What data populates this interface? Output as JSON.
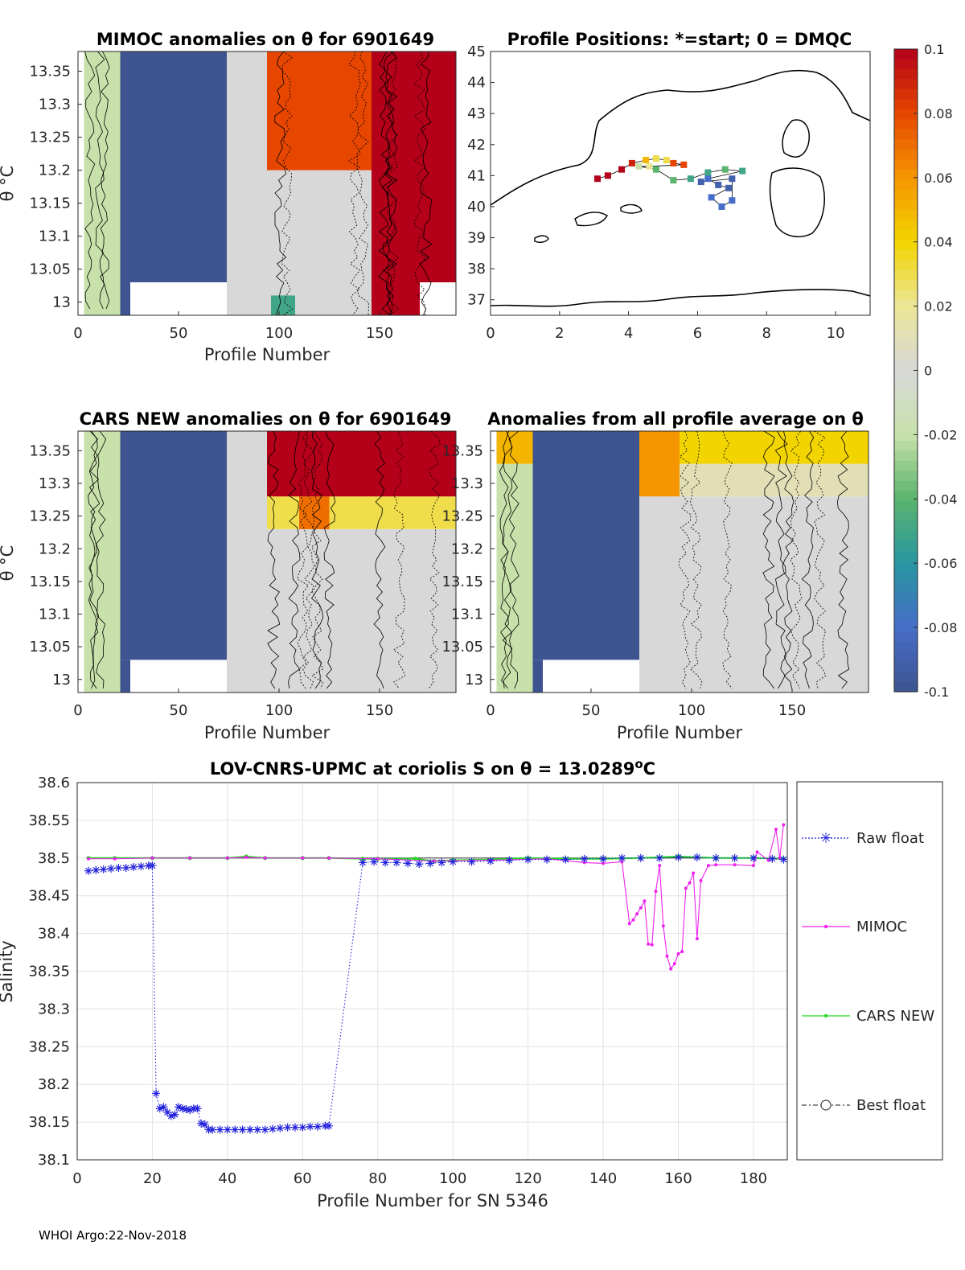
{
  "footer": "WHOI Argo:22-Nov-2018",
  "colors": {
    "blue_block": "#3e5490",
    "gray": "#d8d8d8",
    "pale_green": "#d6e8b9",
    "red": "#b40019",
    "orange": "#f27a00",
    "yellow": "#f2d400",
    "raw": "#2222dd",
    "mimoc": "#ee22ee",
    "cars": "#22dd22",
    "best": "#444444"
  },
  "chart_data": [
    {
      "id": "mimoc_anom",
      "type": "heatmap",
      "title": "MIMOC anomalies on θ  for 6901649",
      "xlabel": "Profile Number",
      "ylabel": "θ °C",
      "xlim": [
        0,
        188
      ],
      "ylim": [
        12.98,
        13.38
      ],
      "xticks": [
        "0",
        "50",
        "100",
        "150"
      ],
      "yticks": [
        "13",
        "13.05",
        "13.1",
        "13.15",
        "13.2",
        "13.25",
        "13.3",
        "13.35"
      ],
      "regions": [
        {
          "x": [
            3,
            21
          ],
          "y": [
            12.98,
            13.38
          ],
          "value": -0.02
        },
        {
          "x": [
            21,
            74
          ],
          "y": [
            13.03,
            13.38
          ],
          "value": -0.1
        },
        {
          "x": [
            21,
            26
          ],
          "y": [
            12.98,
            13.03
          ],
          "value": -0.1
        },
        {
          "x": [
            74,
            94
          ],
          "y": [
            12.98,
            13.38
          ],
          "value": 0.0
        },
        {
          "x": [
            94,
            146
          ],
          "y": [
            12.98,
            13.2
          ],
          "value": 0.0
        },
        {
          "x": [
            94,
            146
          ],
          "y": [
            13.2,
            13.38
          ],
          "value": 0.08
        },
        {
          "x": [
            146,
            170
          ],
          "y": [
            12.98,
            13.38
          ],
          "value": 0.1
        },
        {
          "x": [
            170,
            188
          ],
          "y": [
            13.03,
            13.38
          ],
          "value": 0.1
        },
        {
          "x": [
            96,
            108
          ],
          "y": [
            12.98,
            13.01
          ],
          "value": -0.05
        }
      ]
    },
    {
      "id": "positions",
      "type": "scatter",
      "title": "Profile Positions: *=start; 0 = DMQC",
      "xlim": [
        0,
        11
      ],
      "ylim": [
        36.5,
        45
      ],
      "xticks": [
        "0",
        "2",
        "4",
        "6",
        "8",
        "10"
      ],
      "yticks": [
        "37",
        "38",
        "39",
        "40",
        "41",
        "42",
        "43",
        "44",
        "45"
      ],
      "points": [
        {
          "lon": 3.1,
          "lat": 40.9,
          "value": 0.1
        },
        {
          "lon": 3.4,
          "lat": 41.0,
          "value": 0.1
        },
        {
          "lon": 3.8,
          "lat": 41.2,
          "value": 0.1
        },
        {
          "lon": 4.1,
          "lat": 41.4,
          "value": 0.09
        },
        {
          "lon": 4.5,
          "lat": 41.5,
          "value": 0.05
        },
        {
          "lon": 4.8,
          "lat": 41.55,
          "value": 0.03
        },
        {
          "lon": 5.1,
          "lat": 41.5,
          "value": 0.03
        },
        {
          "lon": 5.3,
          "lat": 41.4,
          "value": 0.08
        },
        {
          "lon": 5.6,
          "lat": 41.35,
          "value": 0.08
        },
        {
          "lon": 4.6,
          "lat": 41.3,
          "value": 0.02
        },
        {
          "lon": 4.3,
          "lat": 41.3,
          "value": -0.02
        },
        {
          "lon": 4.8,
          "lat": 41.2,
          "value": -0.04
        },
        {
          "lon": 5.3,
          "lat": 40.85,
          "value": -0.04
        },
        {
          "lon": 5.8,
          "lat": 40.9,
          "value": -0.05
        },
        {
          "lon": 6.3,
          "lat": 41.1,
          "value": -0.05
        },
        {
          "lon": 6.8,
          "lat": 41.2,
          "value": -0.04
        },
        {
          "lon": 7.3,
          "lat": 41.15,
          "value": -0.05
        },
        {
          "lon": 6.3,
          "lat": 40.9,
          "value": -0.08
        },
        {
          "lon": 6.6,
          "lat": 40.7,
          "value": -0.09
        },
        {
          "lon": 6.9,
          "lat": 40.6,
          "value": -0.09
        },
        {
          "lon": 6.4,
          "lat": 40.3,
          "value": -0.08
        },
        {
          "lon": 6.7,
          "lat": 40.0,
          "value": -0.08
        },
        {
          "lon": 7.0,
          "lat": 40.2,
          "value": -0.08
        },
        {
          "lon": 7.0,
          "lat": 40.9,
          "value": -0.09
        },
        {
          "lon": 6.1,
          "lat": 40.8,
          "value": -0.09
        }
      ]
    },
    {
      "id": "cars_anom",
      "type": "heatmap",
      "title": "CARS NEW anomalies on θ for 6901649",
      "xlabel": "Profile Number",
      "ylabel": "θ °C",
      "xlim": [
        0,
        188
      ],
      "ylim": [
        12.98,
        13.38
      ],
      "xticks": [
        "0",
        "50",
        "100",
        "150"
      ],
      "yticks": [
        "13",
        "13.05",
        "13.1",
        "13.15",
        "13.2",
        "13.25",
        "13.3",
        "13.35"
      ],
      "regions": [
        {
          "x": [
            3,
            21
          ],
          "y": [
            12.98,
            13.38
          ],
          "value": -0.02
        },
        {
          "x": [
            21,
            74
          ],
          "y": [
            13.03,
            13.38
          ],
          "value": -0.1
        },
        {
          "x": [
            21,
            26
          ],
          "y": [
            12.98,
            13.03
          ],
          "value": -0.1
        },
        {
          "x": [
            74,
            94
          ],
          "y": [
            12.98,
            13.38
          ],
          "value": 0.0
        },
        {
          "x": [
            94,
            188
          ],
          "y": [
            12.98,
            13.23
          ],
          "value": 0.0
        },
        {
          "x": [
            94,
            188
          ],
          "y": [
            13.23,
            13.28
          ],
          "value": 0.03
        },
        {
          "x": [
            110,
            125
          ],
          "y": [
            13.23,
            13.28
          ],
          "value": 0.07
        },
        {
          "x": [
            94,
            188
          ],
          "y": [
            13.28,
            13.38
          ],
          "value": 0.1
        }
      ]
    },
    {
      "id": "all_avg_anom",
      "type": "heatmap",
      "title": "Anomalies from all profile average on θ",
      "xlabel": "Profile Number",
      "xlim": [
        0,
        188
      ],
      "ylim": [
        12.98,
        13.38
      ],
      "xticks": [
        "0",
        "50",
        "100",
        "150"
      ],
      "yticks": [
        "13",
        "13.05",
        "13.1",
        "13.15",
        "13.2",
        "13.25",
        "13.3",
        "13.35"
      ],
      "regions": [
        {
          "x": [
            3,
            21
          ],
          "y": [
            12.98,
            13.33
          ],
          "value": -0.02
        },
        {
          "x": [
            3,
            21
          ],
          "y": [
            13.33,
            13.38
          ],
          "value": 0.05
        },
        {
          "x": [
            21,
            74
          ],
          "y": [
            13.03,
            13.38
          ],
          "value": -0.1
        },
        {
          "x": [
            21,
            26
          ],
          "y": [
            12.98,
            13.03
          ],
          "value": -0.1
        },
        {
          "x": [
            74,
            188
          ],
          "y": [
            12.98,
            13.28
          ],
          "value": 0.0
        },
        {
          "x": [
            74,
            94
          ],
          "y": [
            13.28,
            13.38
          ],
          "value": 0.06
        },
        {
          "x": [
            94,
            188
          ],
          "y": [
            13.28,
            13.33
          ],
          "value": 0.01
        },
        {
          "x": [
            94,
            188
          ],
          "y": [
            13.33,
            13.38
          ],
          "value": 0.04
        }
      ]
    },
    {
      "id": "colorbar",
      "type": "colorbar",
      "range": [
        -0.1,
        0.1
      ],
      "ticks": [
        "0.1",
        "0.08",
        "0.06",
        "0.04",
        "0.02",
        "0",
        "-0.02",
        "-0.04",
        "-0.06",
        "-0.08",
        "-0.1"
      ]
    },
    {
      "id": "salinity",
      "type": "line",
      "title": "LOV-CNRS-UPMC at coriolis S on θ = 13.0289°C",
      "title_main": "LOV-CNRS-UPMC at coriolis S on θ = 13.0289",
      "title_unit_sup": "o",
      "title_unit": "C",
      "xlabel": "Profile Number for SN 5346",
      "ylabel": "Salinity",
      "xlim": [
        0,
        189
      ],
      "ylim": [
        38.1,
        38.6
      ],
      "xticks": [
        "0",
        "20",
        "40",
        "60",
        "80",
        "100",
        "120",
        "140",
        "160",
        "180"
      ],
      "yticks": [
        "38.1",
        "38.15",
        "38.2",
        "38.25",
        "38.3",
        "38.35",
        "38.4",
        "38.45",
        "38.5",
        "38.55",
        "38.6"
      ],
      "legend": [
        "Raw float",
        "MIMOC",
        "CARS NEW",
        "Best float"
      ],
      "series": [
        {
          "name": "Raw float",
          "x": [
            3,
            5,
            7,
            9,
            11,
            13,
            15,
            17,
            19,
            20,
            21,
            22,
            23,
            24,
            25,
            26,
            27,
            28,
            29,
            30,
            31,
            32,
            33,
            34,
            35,
            36,
            38,
            40,
            42,
            44,
            46,
            48,
            50,
            52,
            54,
            56,
            58,
            60,
            62,
            64,
            66,
            67,
            76,
            79,
            82,
            85,
            88,
            91,
            94,
            97,
            100,
            105,
            110,
            115,
            120,
            125,
            130,
            135,
            140,
            145,
            150,
            155,
            160,
            165,
            170,
            175,
            180,
            185,
            188
          ],
          "values": [
            38.483,
            38.484,
            38.485,
            38.486,
            38.487,
            38.487,
            38.488,
            38.489,
            38.49,
            38.49,
            38.188,
            38.168,
            38.17,
            38.163,
            38.158,
            38.16,
            38.17,
            38.168,
            38.167,
            38.166,
            38.168,
            38.168,
            38.148,
            38.147,
            38.14,
            38.14,
            38.14,
            38.14,
            38.14,
            38.14,
            38.14,
            38.14,
            38.14,
            38.141,
            38.142,
            38.143,
            38.143,
            38.143,
            38.144,
            38.144,
            38.145,
            38.145,
            38.494,
            38.495,
            38.494,
            38.494,
            38.493,
            38.492,
            38.493,
            38.494,
            38.495,
            38.495,
            38.496,
            38.497,
            38.498,
            38.498,
            38.498,
            38.499,
            38.499,
            38.5,
            38.5,
            38.5,
            38.501,
            38.501,
            38.5,
            38.5,
            38.5,
            38.499,
            38.498
          ]
        },
        {
          "name": "MIMOC",
          "x": [
            3,
            10,
            20,
            30,
            40,
            45,
            50,
            60,
            67,
            80,
            95,
            110,
            125,
            135,
            140,
            145,
            147,
            148,
            149,
            150,
            151,
            152,
            153,
            154,
            155,
            156,
            157,
            158,
            159,
            160,
            161,
            162,
            163,
            164,
            165,
            166,
            168,
            170,
            175,
            180,
            181,
            184,
            186,
            187,
            188
          ],
          "values": [
            38.499,
            38.499,
            38.5,
            38.5,
            38.5,
            38.501,
            38.5,
            38.5,
            38.5,
            38.499,
            38.496,
            38.497,
            38.499,
            38.494,
            38.493,
            38.495,
            38.413,
            38.418,
            38.426,
            38.434,
            38.443,
            38.386,
            38.385,
            38.456,
            38.49,
            38.41,
            38.37,
            38.353,
            38.36,
            38.373,
            38.376,
            38.46,
            38.467,
            38.48,
            38.393,
            38.47,
            38.49,
            38.491,
            38.491,
            38.49,
            38.508,
            38.497,
            38.538,
            38.5,
            38.544
          ]
        },
        {
          "name": "CARS NEW",
          "x": [
            3,
            10,
            20,
            30,
            40,
            45,
            50,
            60,
            67,
            76,
            80,
            90,
            95,
            100,
            110,
            120,
            130,
            140,
            150,
            160,
            170,
            180,
            188
          ],
          "values": [
            38.5,
            38.5,
            38.5,
            38.5,
            38.5,
            38.502,
            38.5,
            38.5,
            38.5,
            38.499,
            38.499,
            38.499,
            38.496,
            38.497,
            38.498,
            38.5,
            38.499,
            38.499,
            38.5,
            38.502,
            38.5,
            38.5,
            38.499
          ]
        },
        {
          "name": "Best float",
          "x": [
            3,
            188
          ],
          "values": [
            38.5,
            38.5
          ]
        }
      ]
    }
  ]
}
